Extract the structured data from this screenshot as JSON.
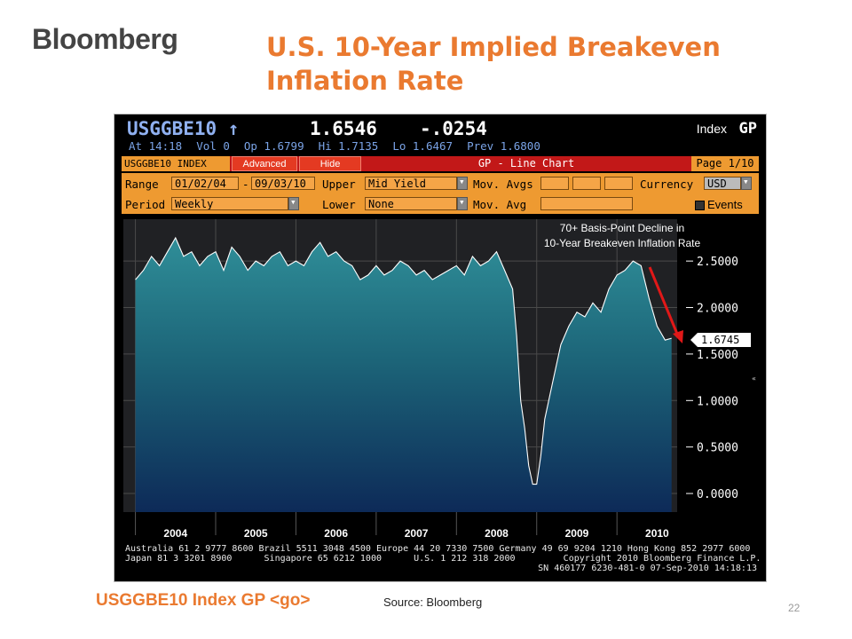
{
  "brand": {
    "logo_text": "Bloomberg"
  },
  "slide": {
    "title_line1": "U.S. 10-Year Implied Breakeven",
    "title_line2": "Inflation Rate",
    "command": "USGGBE10 Index GP <go>",
    "source": "Source:  Bloomberg",
    "page_number": "22"
  },
  "terminal": {
    "ticker": "USGGBE10 ↑",
    "price": "1.6546",
    "change": "-.0254",
    "index_label": "Index",
    "function_code": "GP",
    "quote_line": {
      "time": "At 14:18",
      "vol": "Vol 0",
      "open": "Op 1.6799",
      "high": "Hi 1.7135",
      "low": "Lo 1.6467",
      "prev": "Prev 1.6800"
    },
    "tabs": {
      "security": "USGGBE10 INDEX",
      "advanced": "Advanced",
      "hide": "Hide",
      "chart_type": "GP - Line Chart",
      "page": "Page 1/10"
    },
    "controls": {
      "range_label": "Range",
      "range_start": "01/02/04",
      "range_sep": "-",
      "range_end": "09/03/10",
      "upper_label": "Upper",
      "upper_value": "Mid Yield",
      "mov_avgs_label": "Mov. Avgs",
      "currency_label": "Currency",
      "currency_value": "USD",
      "period_label": "Period",
      "period_value": "Weekly",
      "lower_label": "Lower",
      "lower_value": "None",
      "mov_avg_label": "Mov. Avg",
      "events_label": "Events"
    },
    "footer_line1": "Australia 61 2 9777 8600 Brazil 5511 3048 4500 Europe 44 20 7330 7500 Germany 49 69 9204 1210 Hong Kong 852 2977 6000",
    "footer_line2": "Japan 81 3 3201 8900      Singapore 65 6212 1000      U.S. 1 212 318 2000         Copyright 2010 Bloomberg Finance L.P.",
    "footer_line3": "SN 460177 6230-481-0 07-Sep-2010 14:18:13"
  },
  "colors": {
    "title_orange": "#ea7a30",
    "terminal_bg": "#000000",
    "area_top": "#2f8e98",
    "area_bottom": "#0d2a58",
    "arrow_red": "#e01818",
    "header_blue": "#8fb0f0"
  },
  "chart_data": {
    "type": "area",
    "title": "",
    "xlabel": "",
    "ylabel": "",
    "x_unit": "year",
    "xlim": [
      2003.85,
      2010.75
    ],
    "ylim": [
      -0.2,
      2.95
    ],
    "yticks": [
      "2.5000",
      "2.0000",
      "1.5000",
      "1.0000",
      "0.5000",
      "0.0000"
    ],
    "ytick_values": [
      2.5,
      2.0,
      1.5,
      1.0,
      0.5,
      0.0
    ],
    "xticks": [
      "2004",
      "2005",
      "2006",
      "2007",
      "2008",
      "2009",
      "2010"
    ],
    "last_value_label": "1.6745",
    "annotation": "70+ Basis-Point Decline in\n10-Year Breakeven Inflation Rate",
    "grid": true,
    "series": [
      {
        "x": [
          2004.0,
          2004.1,
          2004.2,
          2004.3,
          2004.4,
          2004.5,
          2004.6,
          2004.7,
          2004.8,
          2004.9,
          2005.0,
          2005.1,
          2005.2,
          2005.3,
          2005.4,
          2005.5,
          2005.6,
          2005.7,
          2005.8,
          2005.9,
          2006.0,
          2006.1,
          2006.2,
          2006.3,
          2006.4,
          2006.5,
          2006.6,
          2006.7,
          2006.8,
          2006.9,
          2007.0,
          2007.1,
          2007.2,
          2007.3,
          2007.4,
          2007.5,
          2007.6,
          2007.7,
          2007.8,
          2007.9,
          2008.0,
          2008.1,
          2008.2,
          2008.3,
          2008.4,
          2008.5,
          2008.6,
          2008.7,
          2008.75,
          2008.8,
          2008.85,
          2008.9,
          2008.95,
          2009.0,
          2009.05,
          2009.1,
          2009.2,
          2009.3,
          2009.4,
          2009.5,
          2009.6,
          2009.7,
          2009.8,
          2009.9,
          2010.0,
          2010.1,
          2010.2,
          2010.3,
          2010.4,
          2010.5,
          2010.6,
          2010.68
        ],
        "y": [
          2.3,
          2.4,
          2.55,
          2.45,
          2.6,
          2.75,
          2.55,
          2.6,
          2.45,
          2.55,
          2.6,
          2.4,
          2.65,
          2.55,
          2.4,
          2.5,
          2.45,
          2.55,
          2.6,
          2.45,
          2.5,
          2.45,
          2.6,
          2.7,
          2.55,
          2.6,
          2.5,
          2.45,
          2.3,
          2.35,
          2.45,
          2.35,
          2.4,
          2.5,
          2.45,
          2.35,
          2.4,
          2.3,
          2.35,
          2.4,
          2.45,
          2.35,
          2.55,
          2.45,
          2.5,
          2.6,
          2.4,
          2.2,
          1.7,
          1.0,
          0.7,
          0.3,
          0.1,
          0.1,
          0.4,
          0.8,
          1.2,
          1.6,
          1.8,
          1.95,
          1.9,
          2.05,
          1.95,
          2.2,
          2.35,
          2.4,
          2.5,
          2.45,
          2.1,
          1.8,
          1.65,
          1.67
        ]
      }
    ]
  }
}
